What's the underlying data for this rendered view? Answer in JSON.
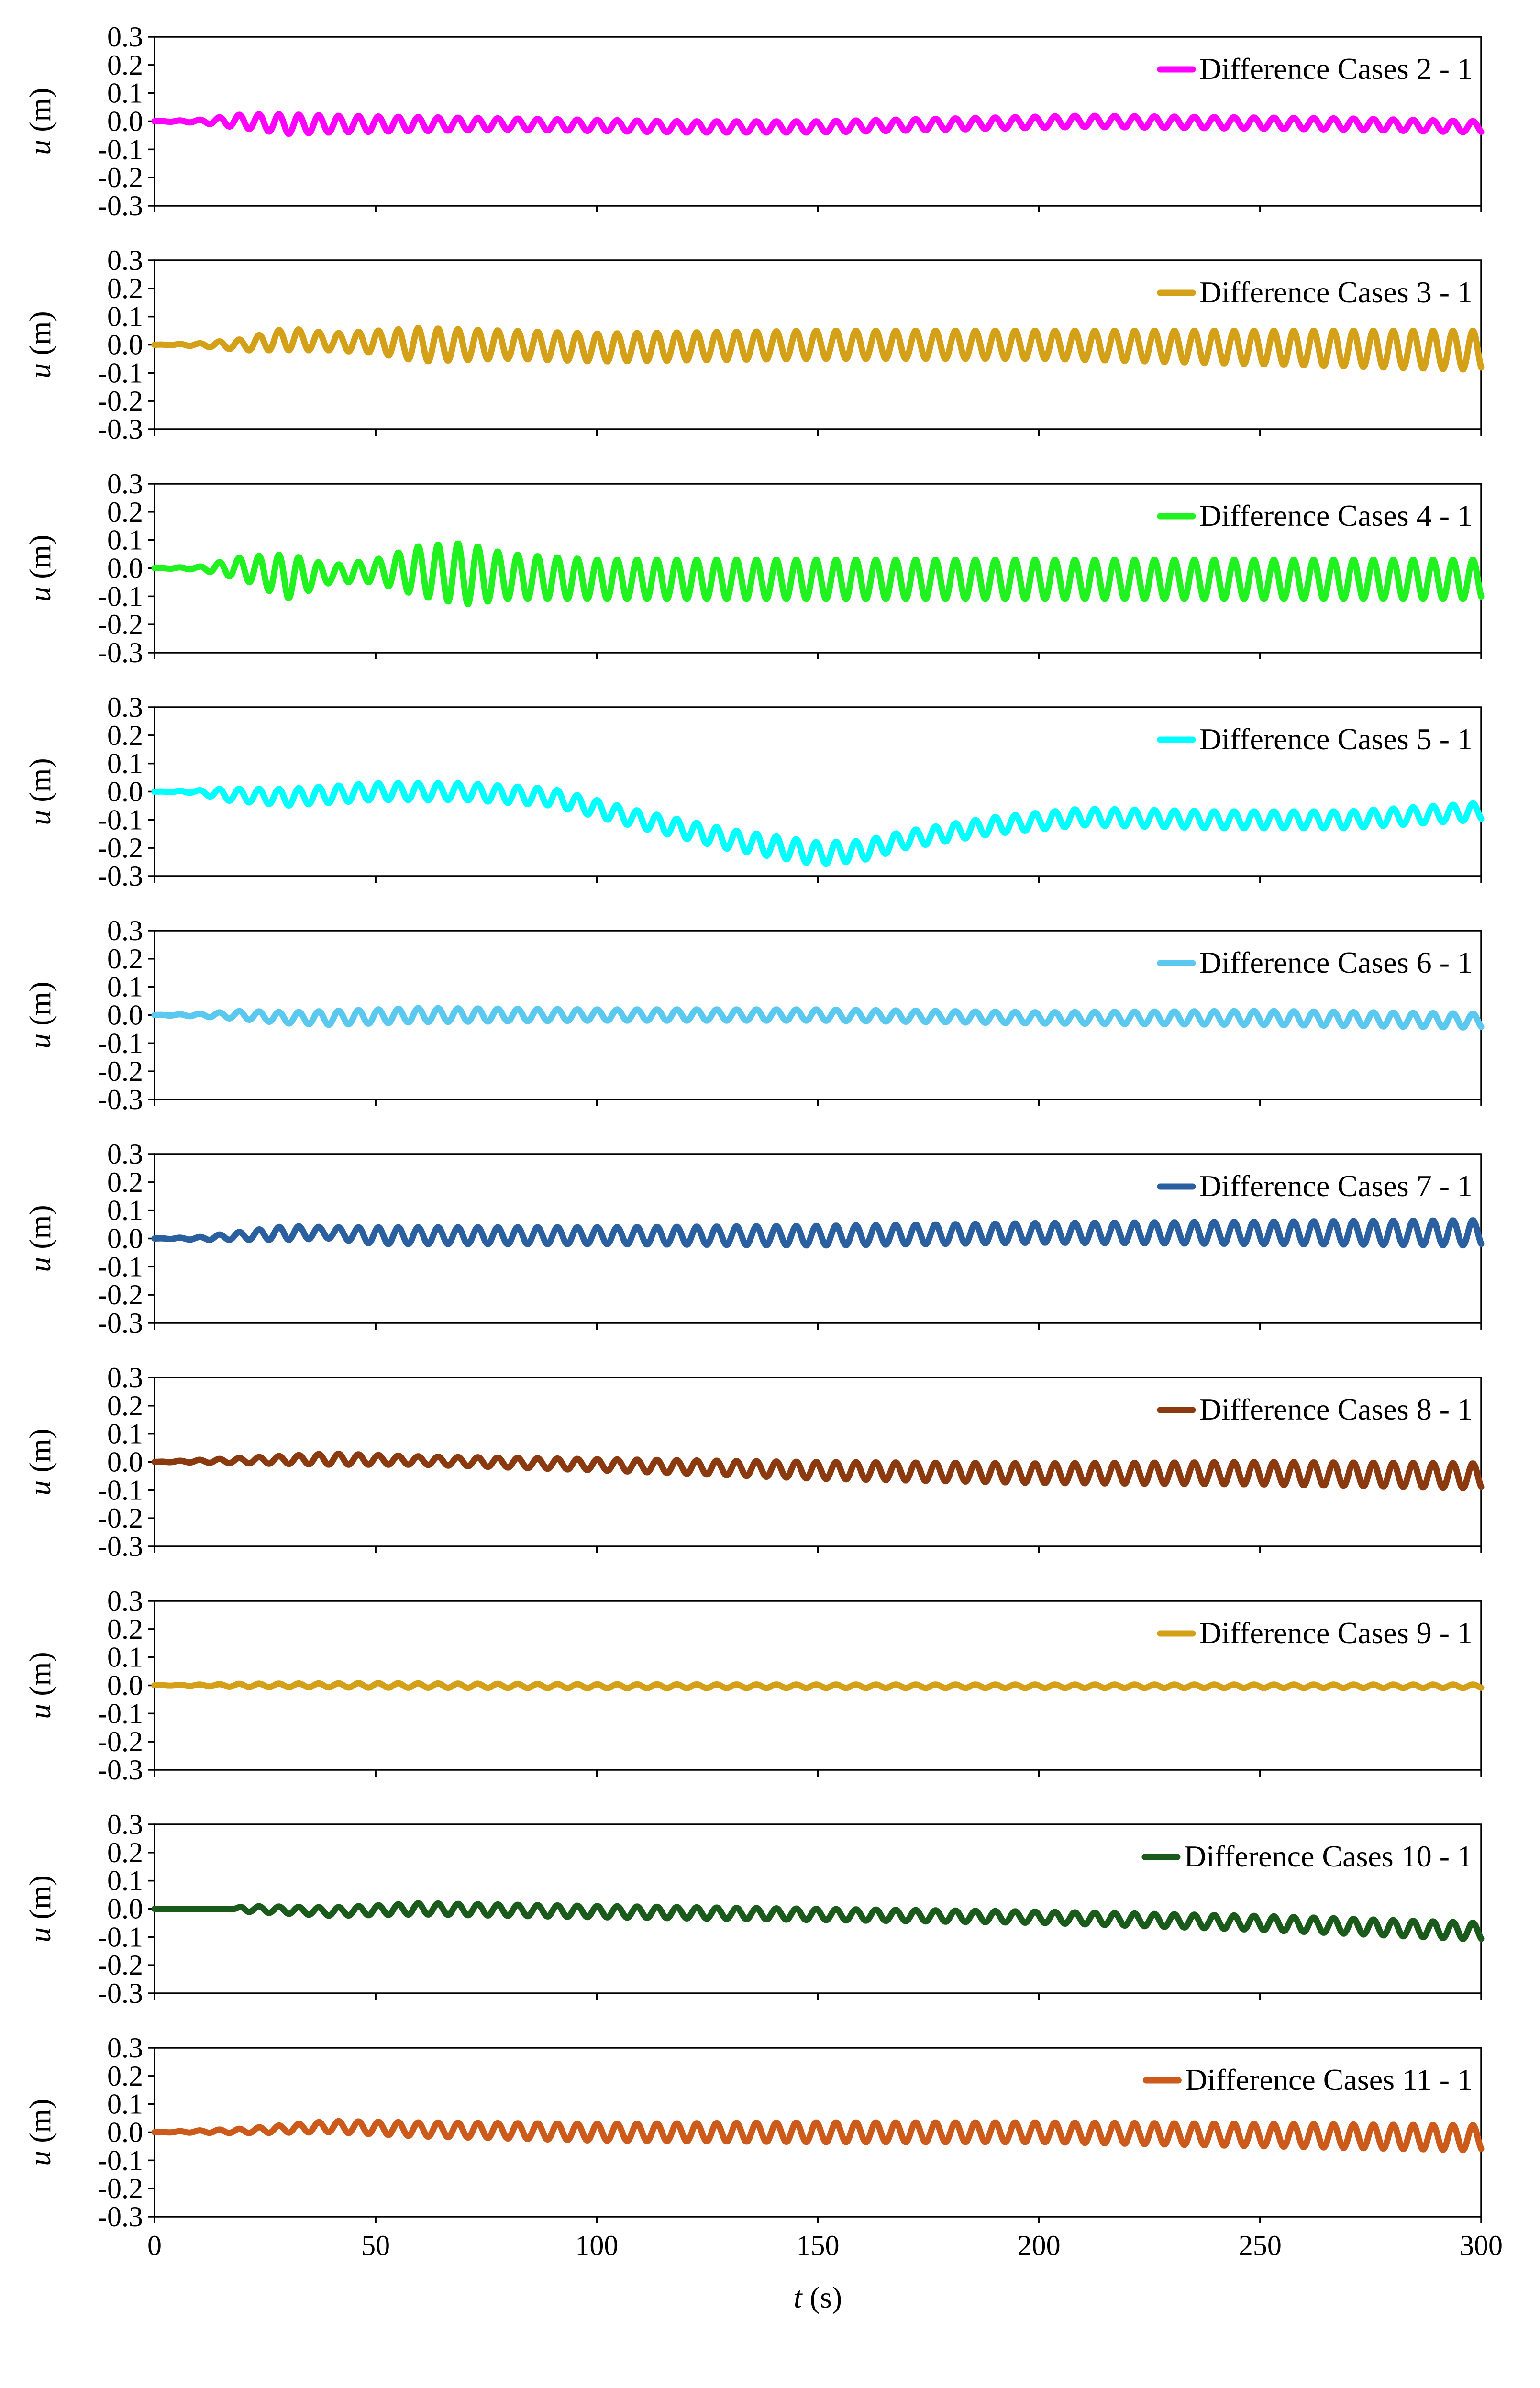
{
  "chart_data": [
    {
      "type": "line",
      "title": "",
      "xlabel": "",
      "ylabel": "u (m)",
      "legend": "Difference Cases 2 - 1",
      "color": "#ff00ff",
      "xlim": [
        0,
        300
      ],
      "ylim": [
        -0.3,
        0.3
      ],
      "yticks": [
        "0.3",
        "0.2",
        "0.1",
        "0.0",
        "-0.1",
        "-0.2",
        "-0.3"
      ],
      "xticks": [],
      "grid": false,
      "legend_position": "top-right",
      "x": [
        0,
        10,
        20,
        30,
        40,
        60,
        80,
        100,
        120,
        150,
        180,
        210,
        240,
        270,
        300
      ],
      "amplitude": [
        0,
        0.005,
        0.025,
        0.035,
        0.03,
        0.025,
        0.02,
        0.02,
        0.02,
        0.02,
        0.02,
        0.02,
        0.02,
        0.02,
        0.02
      ],
      "mean": [
        0,
        0,
        0,
        -0.01,
        -0.01,
        -0.01,
        -0.01,
        -0.015,
        -0.02,
        -0.02,
        -0.01,
        0,
        -0.005,
        -0.01,
        -0.02
      ],
      "period_s": 4.5
    },
    {
      "type": "line",
      "title": "",
      "xlabel": "",
      "ylabel": "u (m)",
      "legend": "Difference Cases 3 - 1",
      "color": "#d4a017",
      "xlim": [
        0,
        300
      ],
      "ylim": [
        -0.3,
        0.3
      ],
      "yticks": [
        "0.3",
        "0.2",
        "0.1",
        "0.0",
        "-0.1",
        "-0.2",
        "-0.3"
      ],
      "xticks": [],
      "grid": false,
      "legend_position": "top-right",
      "x": [
        0,
        10,
        20,
        30,
        40,
        50,
        60,
        80,
        100,
        150,
        200,
        250,
        300
      ],
      "amplitude": [
        0,
        0.005,
        0.02,
        0.04,
        0.03,
        0.04,
        0.06,
        0.05,
        0.05,
        0.05,
        0.05,
        0.06,
        0.07
      ],
      "mean": [
        0,
        0,
        0,
        0.02,
        0.01,
        0.01,
        0,
        0,
        -0.01,
        0,
        0,
        -0.01,
        -0.02
      ],
      "period_s": 4.5
    },
    {
      "type": "line",
      "title": "",
      "xlabel": "",
      "ylabel": "u (m)",
      "legend": "Difference Cases 4 - 1",
      "color": "#1ff21f",
      "xlim": [
        0,
        300
      ],
      "ylim": [
        -0.3,
        0.3
      ],
      "yticks": [
        "0.3",
        "0.2",
        "0.1",
        "0.0",
        "-0.1",
        "-0.2",
        "-0.3"
      ],
      "xticks": [],
      "grid": false,
      "legend_position": "top-right",
      "x": [
        0,
        10,
        20,
        30,
        40,
        50,
        60,
        70,
        80,
        100,
        150,
        200,
        250,
        300
      ],
      "amplitude": [
        0,
        0.005,
        0.04,
        0.08,
        0.03,
        0.04,
        0.09,
        0.11,
        0.08,
        0.07,
        0.07,
        0.07,
        0.07,
        0.07
      ],
      "mean": [
        0,
        0,
        0,
        -0.03,
        -0.02,
        -0.01,
        -0.01,
        -0.02,
        -0.03,
        -0.04,
        -0.04,
        -0.04,
        -0.04,
        -0.04
      ],
      "period_s": 4.5
    },
    {
      "type": "line",
      "title": "",
      "xlabel": "",
      "ylabel": "u (m)",
      "legend": "Difference Cases 5 - 1",
      "color": "#00ffff",
      "xlim": [
        0,
        300
      ],
      "ylim": [
        -0.3,
        0.3
      ],
      "yticks": [
        "0.3",
        "0.2",
        "0.1",
        "0.0",
        "-0.1",
        "-0.2",
        "-0.3"
      ],
      "xticks": [],
      "grid": false,
      "legend_position": "top-right",
      "x": [
        0,
        10,
        15,
        30,
        50,
        70,
        90,
        110,
        130,
        150,
        160,
        170,
        190,
        210,
        240,
        270,
        300
      ],
      "amplitude": [
        0,
        0.005,
        0.02,
        0.03,
        0.03,
        0.03,
        0.03,
        0.03,
        0.035,
        0.04,
        0.035,
        0.03,
        0.03,
        0.03,
        0.03,
        0.03,
        0.03
      ],
      "mean": [
        0,
        0,
        -0.01,
        -0.02,
        0,
        0,
        -0.02,
        -0.1,
        -0.17,
        -0.22,
        -0.21,
        -0.17,
        -0.12,
        -0.09,
        -0.1,
        -0.1,
        -0.07
      ],
      "period_s": 4.5
    },
    {
      "type": "line",
      "title": "",
      "xlabel": "",
      "ylabel": "u (m)",
      "legend": "Difference Cases 6 - 1",
      "color": "#5bc8f0",
      "xlim": [
        0,
        300
      ],
      "ylim": [
        -0.3,
        0.3
      ],
      "yticks": [
        "0.3",
        "0.2",
        "0.1",
        "0.0",
        "-0.1",
        "-0.2",
        "-0.3"
      ],
      "xticks": [],
      "grid": false,
      "legend_position": "top-right",
      "x": [
        0,
        10,
        20,
        30,
        40,
        60,
        100,
        150,
        200,
        250,
        300
      ],
      "amplitude": [
        0,
        0.005,
        0.015,
        0.02,
        0.025,
        0.025,
        0.02,
        0.02,
        0.02,
        0.025,
        0.025
      ],
      "mean": [
        0,
        0,
        0,
        -0.01,
        -0.01,
        0,
        0,
        0,
        -0.01,
        -0.01,
        -0.02
      ],
      "period_s": 4.5
    },
    {
      "type": "line",
      "title": "",
      "xlabel": "",
      "ylabel": "u (m)",
      "legend": "Difference Cases 7 - 1",
      "color": "#2a5fa0",
      "xlim": [
        0,
        300
      ],
      "ylim": [
        -0.3,
        0.3
      ],
      "yticks": [
        "0.3",
        "0.2",
        "0.1",
        "0.0",
        "-0.1",
        "-0.2",
        "-0.3"
      ],
      "xticks": [],
      "grid": false,
      "legend_position": "top-right",
      "x": [
        0,
        10,
        20,
        30,
        40,
        50,
        100,
        150,
        200,
        250,
        300
      ],
      "amplitude": [
        0,
        0.005,
        0.015,
        0.025,
        0.02,
        0.03,
        0.03,
        0.035,
        0.035,
        0.04,
        0.045
      ],
      "mean": [
        0,
        0,
        0.01,
        0.02,
        0.02,
        0.01,
        0.01,
        0.01,
        0.02,
        0.02,
        0.02
      ],
      "period_s": 4.5
    },
    {
      "type": "line",
      "title": "",
      "xlabel": "",
      "ylabel": "u (m)",
      "legend": "Difference Cases 8 - 1",
      "color": "#8b3a10",
      "xlim": [
        0,
        300
      ],
      "ylim": [
        -0.3,
        0.3
      ],
      "yticks": [
        "0.3",
        "0.2",
        "0.1",
        "0.0",
        "-0.1",
        "-0.2",
        "-0.3"
      ],
      "xticks": [],
      "grid": false,
      "legend_position": "top-right",
      "x": [
        0,
        20,
        40,
        60,
        100,
        150,
        200,
        250,
        300
      ],
      "amplitude": [
        0,
        0.01,
        0.02,
        0.015,
        0.02,
        0.03,
        0.035,
        0.04,
        0.045
      ],
      "mean": [
        0,
        0.005,
        0.01,
        0.005,
        -0.01,
        -0.03,
        -0.04,
        -0.04,
        -0.05
      ],
      "period_s": 4.5
    },
    {
      "type": "line",
      "title": "",
      "xlabel": "",
      "ylabel": "u (m)",
      "legend": "Difference Cases 9 - 1",
      "color": "#d4a017",
      "xlim": [
        0,
        300
      ],
      "ylim": [
        -0.3,
        0.3
      ],
      "yticks": [
        "0.3",
        "0.2",
        "0.1",
        "0.0",
        "-0.1",
        "-0.2",
        "-0.3"
      ],
      "xticks": [],
      "grid": false,
      "legend_position": "top-right",
      "x": [
        0,
        20,
        50,
        100,
        150,
        200,
        250,
        300
      ],
      "amplitude": [
        0,
        0.006,
        0.008,
        0.007,
        0.006,
        0.006,
        0.006,
        0.006
      ],
      "mean": [
        0,
        0,
        0,
        -0.003,
        -0.003,
        -0.003,
        -0.003,
        -0.003
      ],
      "period_s": 4.5
    },
    {
      "type": "line",
      "title": "",
      "xlabel": "",
      "ylabel": "u (m)",
      "legend": "Difference Cases 10 - 1",
      "color": "#1a5a1a",
      "xlim": [
        0,
        300
      ],
      "ylim": [
        -0.3,
        0.3
      ],
      "yticks": [
        "0.3",
        "0.2",
        "0.1",
        "0.0",
        "-0.1",
        "-0.2",
        "-0.3"
      ],
      "xticks": [],
      "grid": false,
      "legend_position": "top-right",
      "x": [
        0,
        18,
        20,
        40,
        60,
        100,
        150,
        200,
        250,
        300
      ],
      "amplitude": [
        0,
        0,
        0.01,
        0.015,
        0.02,
        0.02,
        0.02,
        0.02,
        0.025,
        0.03
      ],
      "mean": [
        0,
        0,
        0,
        -0.01,
        0,
        -0.01,
        -0.02,
        -0.03,
        -0.05,
        -0.08
      ],
      "period_s": 4.5
    },
    {
      "type": "line",
      "title": "",
      "xlabel": "t (s)",
      "ylabel": "u (m)",
      "legend": "Difference Cases 11 - 1",
      "color": "#cc5a1a",
      "xlim": [
        0,
        300
      ],
      "ylim": [
        -0.3,
        0.3
      ],
      "yticks": [
        "0.3",
        "0.2",
        "0.1",
        "0.0",
        "-0.1",
        "-0.2",
        "-0.3"
      ],
      "xticks": [
        "0",
        "50",
        "100",
        "150",
        "200",
        "250",
        "300"
      ],
      "grid": false,
      "legend_position": "top-right",
      "x": [
        0,
        20,
        40,
        60,
        100,
        150,
        200,
        250,
        300
      ],
      "amplitude": [
        0,
        0.008,
        0.02,
        0.025,
        0.03,
        0.035,
        0.035,
        0.04,
        0.045
      ],
      "mean": [
        0,
        0.005,
        0.02,
        0.01,
        0,
        0,
        0,
        -0.01,
        -0.02
      ],
      "period_s": 4.5
    }
  ]
}
